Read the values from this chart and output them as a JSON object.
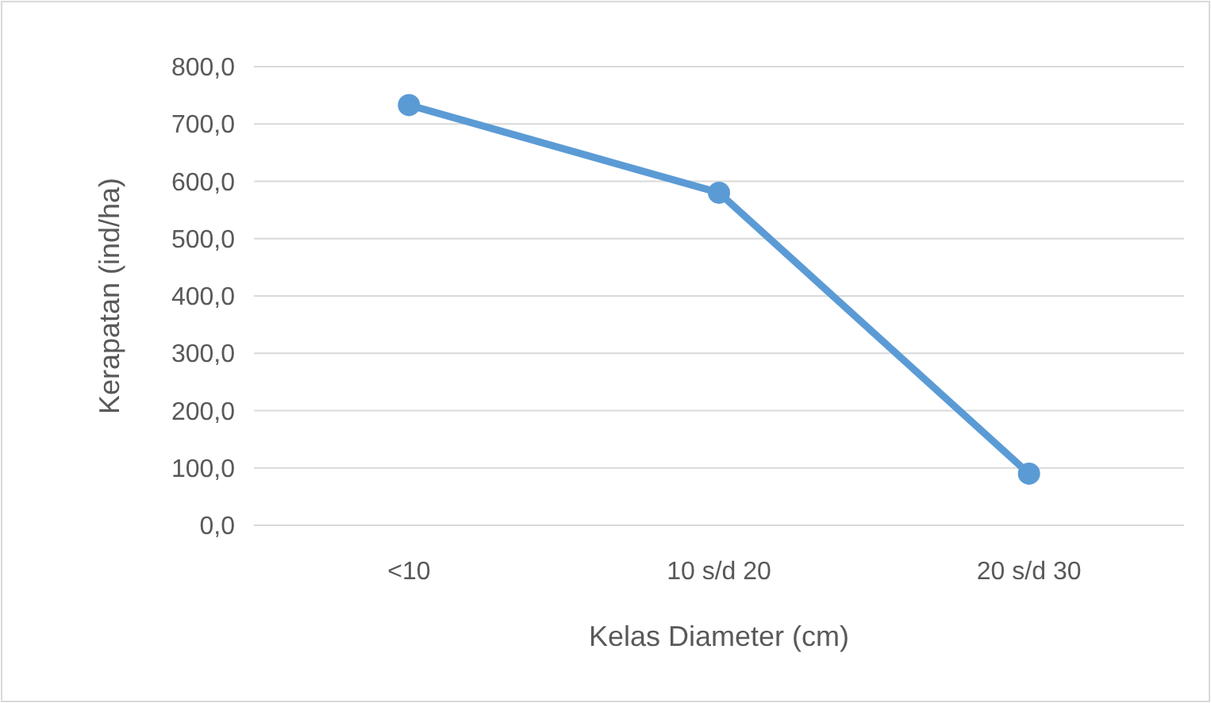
{
  "chart_data": {
    "type": "line",
    "xlabel": "Kelas Diameter (cm)",
    "ylabel": "Kerapatan (ind/ha)",
    "categories": [
      "<10",
      "10 s/d 20",
      "20 s/d 30"
    ],
    "series": [
      {
        "color": "#5b9bd5",
        "values": [
          733,
          580,
          90
        ]
      }
    ],
    "ylim": [
      0,
      800
    ],
    "yticks": [
      {
        "value": 0,
        "label": "0,0"
      },
      {
        "value": 100,
        "label": "100,0"
      },
      {
        "value": 200,
        "label": "200,0"
      },
      {
        "value": 300,
        "label": "300,0"
      },
      {
        "value": 400,
        "label": "400,0"
      },
      {
        "value": 500,
        "label": "500,0"
      },
      {
        "value": 600,
        "label": "600,0"
      },
      {
        "value": 700,
        "label": "700,0"
      },
      {
        "value": 800,
        "label": "800,0"
      }
    ],
    "grid": "y",
    "marker": "circle"
  }
}
